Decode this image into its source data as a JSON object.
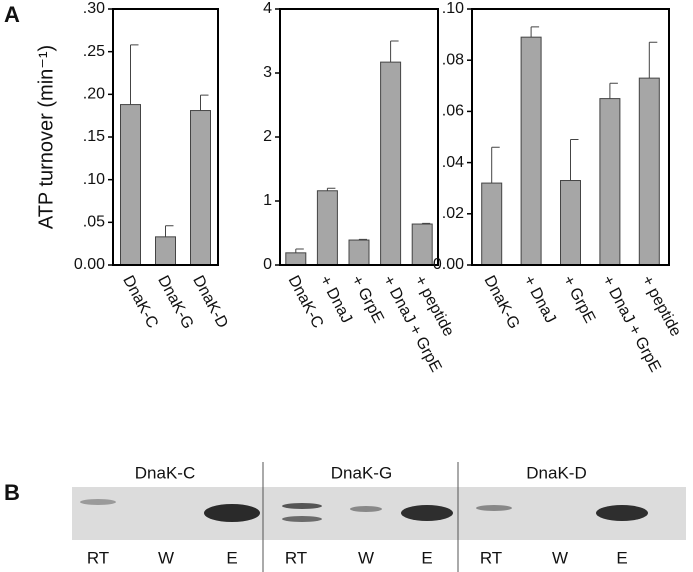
{
  "panel_labels": [
    "A",
    "B"
  ],
  "chart_data": [
    {
      "type": "bar",
      "ylabel": "ATP turnover (min⁻¹)",
      "categories": [
        "DnaK-C",
        "DnaK-G",
        "DnaK-D"
      ],
      "values": [
        0.188,
        0.033,
        0.181
      ],
      "errors": [
        0.07,
        0.013,
        0.018
      ],
      "color": "#a6a6a6",
      "ylim": [
        0,
        0.3
      ],
      "yticks": [
        {
          "value": 0,
          "label": "0.00"
        },
        {
          "value": 0.05,
          "label": ".05"
        },
        {
          "value": 0.1,
          "label": ".10"
        },
        {
          "value": 0.15,
          "label": ".15"
        },
        {
          "value": 0.2,
          "label": ".20"
        },
        {
          "value": 0.25,
          "label": ".25"
        },
        {
          "value": 0.3,
          "label": ".30"
        }
      ]
    },
    {
      "type": "bar",
      "categories": [
        "DnaK-C",
        "+ DnaJ",
        "+ GrpE",
        "+ DnaJ + GrpE",
        "+ peptide"
      ],
      "values": [
        0.19,
        1.16,
        0.39,
        3.17,
        0.64
      ],
      "errors": [
        0.06,
        0.04,
        0.01,
        0.33,
        0.01
      ],
      "color": "#a6a6a6",
      "ylim": [
        0,
        4
      ],
      "yticks": [
        0,
        1,
        2,
        3,
        4
      ]
    },
    {
      "type": "bar",
      "categories": [
        "DnaK-G",
        "+ DnaJ",
        "+ GrpE",
        "+ DnaJ + GrpE",
        "+ peptide"
      ],
      "values": [
        0.032,
        0.089,
        0.033,
        0.065,
        0.073
      ],
      "errors": [
        0.014,
        0.004,
        0.016,
        0.006,
        0.014
      ],
      "color": "#a6a6a6",
      "ylim": [
        0,
        0.1
      ],
      "yticks": [
        {
          "value": 0,
          "label": "0.00"
        },
        {
          "value": 0.02,
          "label": ".02"
        },
        {
          "value": 0.04,
          "label": ".04"
        },
        {
          "value": 0.06,
          "label": ".06"
        },
        {
          "value": 0.08,
          "label": ".08"
        },
        {
          "value": 0.1,
          "label": ".10"
        }
      ]
    }
  ],
  "gel": {
    "samples": [
      {
        "name": "DnaK-C",
        "lanes": [
          "RT",
          "W",
          "E"
        ]
      },
      {
        "name": "DnaK-G",
        "lanes": [
          "RT",
          "W",
          "E"
        ]
      },
      {
        "name": "DnaK-D",
        "lanes": [
          "RT",
          "W",
          "E"
        ]
      }
    ]
  }
}
